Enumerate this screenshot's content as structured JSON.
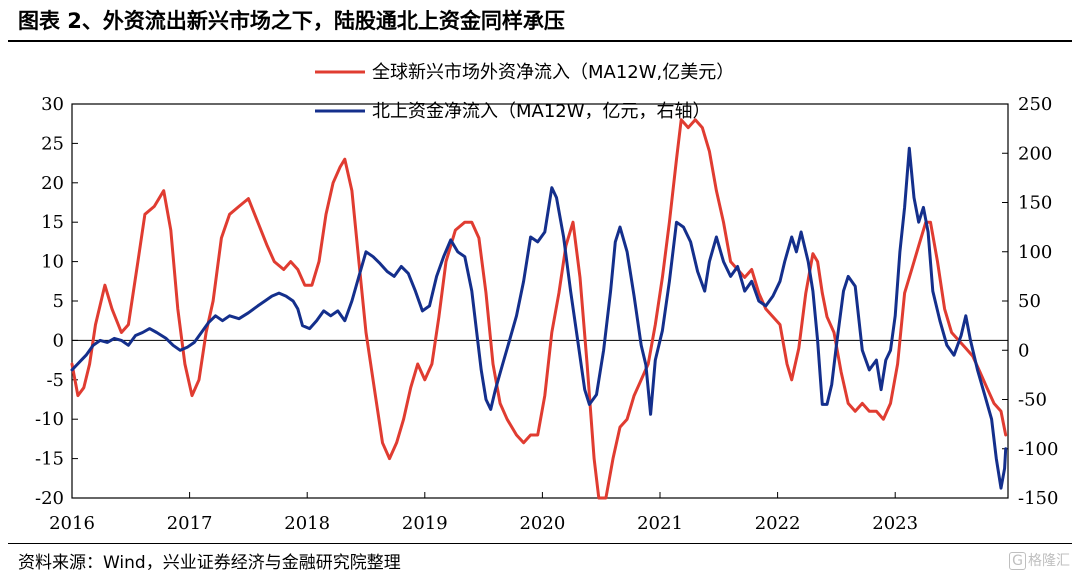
{
  "title": "图表 2、外资流出新兴市场之下，陆股通北上资金同样承压",
  "source": "资料来源：Wind，兴业证券经济与金融研究院整理",
  "watermark": {
    "icon": "G",
    "text": "格隆汇"
  },
  "chart_data": {
    "type": "line",
    "x_ticks": [
      "2016",
      "2017",
      "2018",
      "2019",
      "2020",
      "2021",
      "2022",
      "2023"
    ],
    "x_range": [
      2016.0,
      2023.95
    ],
    "y_left": {
      "range": [
        -20,
        30
      ],
      "ticks": [
        30,
        25,
        20,
        15,
        10,
        5,
        0,
        -5,
        -10,
        -15,
        -20
      ]
    },
    "y_right": {
      "range": [
        -150,
        250
      ],
      "ticks": [
        250,
        200,
        150,
        100,
        50,
        0,
        -50,
        -100,
        -150
      ]
    },
    "legend": [
      "全球新兴市场外资净流入（MA12W,亿美元）",
      "北上资金净流入（MA12W，亿元，右轴）"
    ],
    "series": [
      {
        "name": "全球新兴市场外资净流入（MA12W,亿美元）",
        "color": "#e03c31",
        "axis": "left",
        "points": [
          [
            2016.0,
            -3
          ],
          [
            2016.05,
            -7
          ],
          [
            2016.1,
            -6
          ],
          [
            2016.15,
            -3
          ],
          [
            2016.2,
            2
          ],
          [
            2016.28,
            7
          ],
          [
            2016.34,
            4
          ],
          [
            2016.42,
            1
          ],
          [
            2016.48,
            2
          ],
          [
            2016.56,
            10
          ],
          [
            2016.62,
            16
          ],
          [
            2016.7,
            17
          ],
          [
            2016.78,
            19
          ],
          [
            2016.84,
            14
          ],
          [
            2016.9,
            4
          ],
          [
            2016.96,
            -3
          ],
          [
            2017.02,
            -7
          ],
          [
            2017.08,
            -5
          ],
          [
            2017.14,
            1
          ],
          [
            2017.2,
            5
          ],
          [
            2017.27,
            13
          ],
          [
            2017.34,
            16
          ],
          [
            2017.42,
            17
          ],
          [
            2017.5,
            18
          ],
          [
            2017.58,
            15
          ],
          [
            2017.66,
            12
          ],
          [
            2017.72,
            10
          ],
          [
            2017.8,
            9
          ],
          [
            2017.86,
            10
          ],
          [
            2017.92,
            9
          ],
          [
            2017.98,
            7
          ],
          [
            2018.04,
            7
          ],
          [
            2018.1,
            10
          ],
          [
            2018.16,
            16
          ],
          [
            2018.22,
            20
          ],
          [
            2018.28,
            22
          ],
          [
            2018.32,
            23
          ],
          [
            2018.38,
            19
          ],
          [
            2018.44,
            10
          ],
          [
            2018.5,
            1
          ],
          [
            2018.58,
            -7
          ],
          [
            2018.64,
            -13
          ],
          [
            2018.7,
            -15
          ],
          [
            2018.76,
            -13
          ],
          [
            2018.82,
            -10
          ],
          [
            2018.88,
            -6
          ],
          [
            2018.94,
            -3
          ],
          [
            2019.0,
            -5
          ],
          [
            2019.06,
            -3
          ],
          [
            2019.12,
            3
          ],
          [
            2019.18,
            10
          ],
          [
            2019.26,
            14
          ],
          [
            2019.34,
            15
          ],
          [
            2019.4,
            15
          ],
          [
            2019.46,
            13
          ],
          [
            2019.52,
            6
          ],
          [
            2019.58,
            -3
          ],
          [
            2019.64,
            -8
          ],
          [
            2019.7,
            -10
          ],
          [
            2019.78,
            -12
          ],
          [
            2019.84,
            -13
          ],
          [
            2019.9,
            -12
          ],
          [
            2019.96,
            -12
          ],
          [
            2020.02,
            -7
          ],
          [
            2020.08,
            1
          ],
          [
            2020.14,
            6
          ],
          [
            2020.2,
            12
          ],
          [
            2020.26,
            15
          ],
          [
            2020.32,
            8
          ],
          [
            2020.38,
            -3
          ],
          [
            2020.44,
            -15
          ],
          [
            2020.48,
            -20
          ],
          [
            2020.54,
            -20
          ],
          [
            2020.6,
            -15
          ],
          [
            2020.66,
            -11
          ],
          [
            2020.72,
            -10
          ],
          [
            2020.78,
            -7
          ],
          [
            2020.84,
            -5
          ],
          [
            2020.9,
            -3
          ],
          [
            2020.96,
            2
          ],
          [
            2021.02,
            8
          ],
          [
            2021.08,
            15
          ],
          [
            2021.14,
            23
          ],
          [
            2021.18,
            28
          ],
          [
            2021.24,
            27
          ],
          [
            2021.3,
            28
          ],
          [
            2021.36,
            27
          ],
          [
            2021.42,
            24
          ],
          [
            2021.48,
            19
          ],
          [
            2021.54,
            15
          ],
          [
            2021.6,
            10
          ],
          [
            2021.66,
            9
          ],
          [
            2021.72,
            8
          ],
          [
            2021.78,
            9
          ],
          [
            2021.84,
            6
          ],
          [
            2021.9,
            4
          ],
          [
            2021.96,
            3
          ],
          [
            2022.02,
            2
          ],
          [
            2022.08,
            -3
          ],
          [
            2022.12,
            -5
          ],
          [
            2022.18,
            -1
          ],
          [
            2022.24,
            6
          ],
          [
            2022.3,
            11
          ],
          [
            2022.34,
            10
          ],
          [
            2022.38,
            6
          ],
          [
            2022.42,
            3
          ],
          [
            2022.48,
            1
          ],
          [
            2022.54,
            -4
          ],
          [
            2022.6,
            -8
          ],
          [
            2022.66,
            -9
          ],
          [
            2022.72,
            -8
          ],
          [
            2022.78,
            -9
          ],
          [
            2022.84,
            -9
          ],
          [
            2022.9,
            -10
          ],
          [
            2022.96,
            -8
          ],
          [
            2023.02,
            -3
          ],
          [
            2023.08,
            6
          ],
          [
            2023.14,
            9
          ],
          [
            2023.2,
            12
          ],
          [
            2023.26,
            15
          ],
          [
            2023.3,
            15
          ],
          [
            2023.36,
            10
          ],
          [
            2023.42,
            4
          ],
          [
            2023.48,
            1
          ],
          [
            2023.54,
            0
          ],
          [
            2023.6,
            -1
          ],
          [
            2023.66,
            -2
          ],
          [
            2023.72,
            -4
          ],
          [
            2023.78,
            -6
          ],
          [
            2023.84,
            -8
          ],
          [
            2023.9,
            -9
          ],
          [
            2023.94,
            -12
          ]
        ]
      },
      {
        "name": "北上资金净流入（MA12W，亿元，右轴）",
        "color": "#142f8c",
        "axis": "right",
        "points": [
          [
            2016.0,
            -20
          ],
          [
            2016.04,
            -15
          ],
          [
            2016.08,
            -10
          ],
          [
            2016.12,
            -5
          ],
          [
            2016.18,
            5
          ],
          [
            2016.24,
            10
          ],
          [
            2016.3,
            8
          ],
          [
            2016.36,
            12
          ],
          [
            2016.42,
            10
          ],
          [
            2016.48,
            5
          ],
          [
            2016.54,
            15
          ],
          [
            2016.6,
            18
          ],
          [
            2016.66,
            22
          ],
          [
            2016.72,
            18
          ],
          [
            2016.8,
            12
          ],
          [
            2016.86,
            5
          ],
          [
            2016.92,
            0
          ],
          [
            2016.98,
            3
          ],
          [
            2017.04,
            8
          ],
          [
            2017.1,
            18
          ],
          [
            2017.16,
            28
          ],
          [
            2017.22,
            35
          ],
          [
            2017.28,
            30
          ],
          [
            2017.34,
            35
          ],
          [
            2017.42,
            32
          ],
          [
            2017.5,
            38
          ],
          [
            2017.58,
            45
          ],
          [
            2017.64,
            50
          ],
          [
            2017.7,
            55
          ],
          [
            2017.76,
            58
          ],
          [
            2017.82,
            55
          ],
          [
            2017.88,
            50
          ],
          [
            2017.92,
            42
          ],
          [
            2017.96,
            25
          ],
          [
            2018.02,
            22
          ],
          [
            2018.08,
            30
          ],
          [
            2018.14,
            40
          ],
          [
            2018.2,
            35
          ],
          [
            2018.26,
            40
          ],
          [
            2018.32,
            30
          ],
          [
            2018.38,
            50
          ],
          [
            2018.44,
            75
          ],
          [
            2018.5,
            100
          ],
          [
            2018.56,
            95
          ],
          [
            2018.62,
            88
          ],
          [
            2018.68,
            80
          ],
          [
            2018.74,
            75
          ],
          [
            2018.8,
            85
          ],
          [
            2018.86,
            78
          ],
          [
            2018.92,
            60
          ],
          [
            2018.98,
            40
          ],
          [
            2019.04,
            45
          ],
          [
            2019.1,
            75
          ],
          [
            2019.16,
            95
          ],
          [
            2019.22,
            112
          ],
          [
            2019.28,
            100
          ],
          [
            2019.34,
            95
          ],
          [
            2019.4,
            60
          ],
          [
            2019.44,
            20
          ],
          [
            2019.48,
            -20
          ],
          [
            2019.52,
            -50
          ],
          [
            2019.56,
            -60
          ],
          [
            2019.6,
            -40
          ],
          [
            2019.66,
            -15
          ],
          [
            2019.72,
            10
          ],
          [
            2019.78,
            35
          ],
          [
            2019.84,
            70
          ],
          [
            2019.9,
            115
          ],
          [
            2019.96,
            110
          ],
          [
            2020.02,
            120
          ],
          [
            2020.08,
            165
          ],
          [
            2020.12,
            155
          ],
          [
            2020.18,
            115
          ],
          [
            2020.24,
            60
          ],
          [
            2020.3,
            10
          ],
          [
            2020.36,
            -40
          ],
          [
            2020.4,
            -55
          ],
          [
            2020.46,
            -45
          ],
          [
            2020.52,
            0
          ],
          [
            2020.58,
            60
          ],
          [
            2020.62,
            110
          ],
          [
            2020.66,
            125
          ],
          [
            2020.72,
            100
          ],
          [
            2020.78,
            55
          ],
          [
            2020.84,
            5
          ],
          [
            2020.88,
            -15
          ],
          [
            2020.92,
            -65
          ],
          [
            2020.96,
            -10
          ],
          [
            2021.02,
            20
          ],
          [
            2021.08,
            70
          ],
          [
            2021.14,
            130
          ],
          [
            2021.2,
            125
          ],
          [
            2021.26,
            110
          ],
          [
            2021.32,
            80
          ],
          [
            2021.38,
            60
          ],
          [
            2021.42,
            90
          ],
          [
            2021.48,
            115
          ],
          [
            2021.54,
            90
          ],
          [
            2021.6,
            75
          ],
          [
            2021.66,
            85
          ],
          [
            2021.72,
            60
          ],
          [
            2021.78,
            70
          ],
          [
            2021.84,
            50
          ],
          [
            2021.9,
            45
          ],
          [
            2021.96,
            55
          ],
          [
            2022.02,
            70
          ],
          [
            2022.06,
            90
          ],
          [
            2022.12,
            115
          ],
          [
            2022.16,
            100
          ],
          [
            2022.2,
            120
          ],
          [
            2022.26,
            90
          ],
          [
            2022.3,
            60
          ],
          [
            2022.34,
            10
          ],
          [
            2022.38,
            -55
          ],
          [
            2022.42,
            -55
          ],
          [
            2022.46,
            -35
          ],
          [
            2022.5,
            5
          ],
          [
            2022.56,
            60
          ],
          [
            2022.6,
            75
          ],
          [
            2022.66,
            65
          ],
          [
            2022.72,
            0
          ],
          [
            2022.78,
            -20
          ],
          [
            2022.84,
            -10
          ],
          [
            2022.88,
            -40
          ],
          [
            2022.92,
            -10
          ],
          [
            2022.96,
            0
          ],
          [
            2023.0,
            35
          ],
          [
            2023.04,
            100
          ],
          [
            2023.08,
            145
          ],
          [
            2023.12,
            205
          ],
          [
            2023.16,
            155
          ],
          [
            2023.2,
            130
          ],
          [
            2023.24,
            145
          ],
          [
            2023.28,
            120
          ],
          [
            2023.32,
            60
          ],
          [
            2023.38,
            30
          ],
          [
            2023.44,
            5
          ],
          [
            2023.5,
            -5
          ],
          [
            2023.56,
            15
          ],
          [
            2023.6,
            35
          ],
          [
            2023.64,
            10
          ],
          [
            2023.7,
            -20
          ],
          [
            2023.76,
            -45
          ],
          [
            2023.82,
            -70
          ],
          [
            2023.86,
            -110
          ],
          [
            2023.9,
            -140
          ],
          [
            2023.93,
            -120
          ],
          [
            2023.94,
            -100
          ]
        ]
      }
    ]
  }
}
